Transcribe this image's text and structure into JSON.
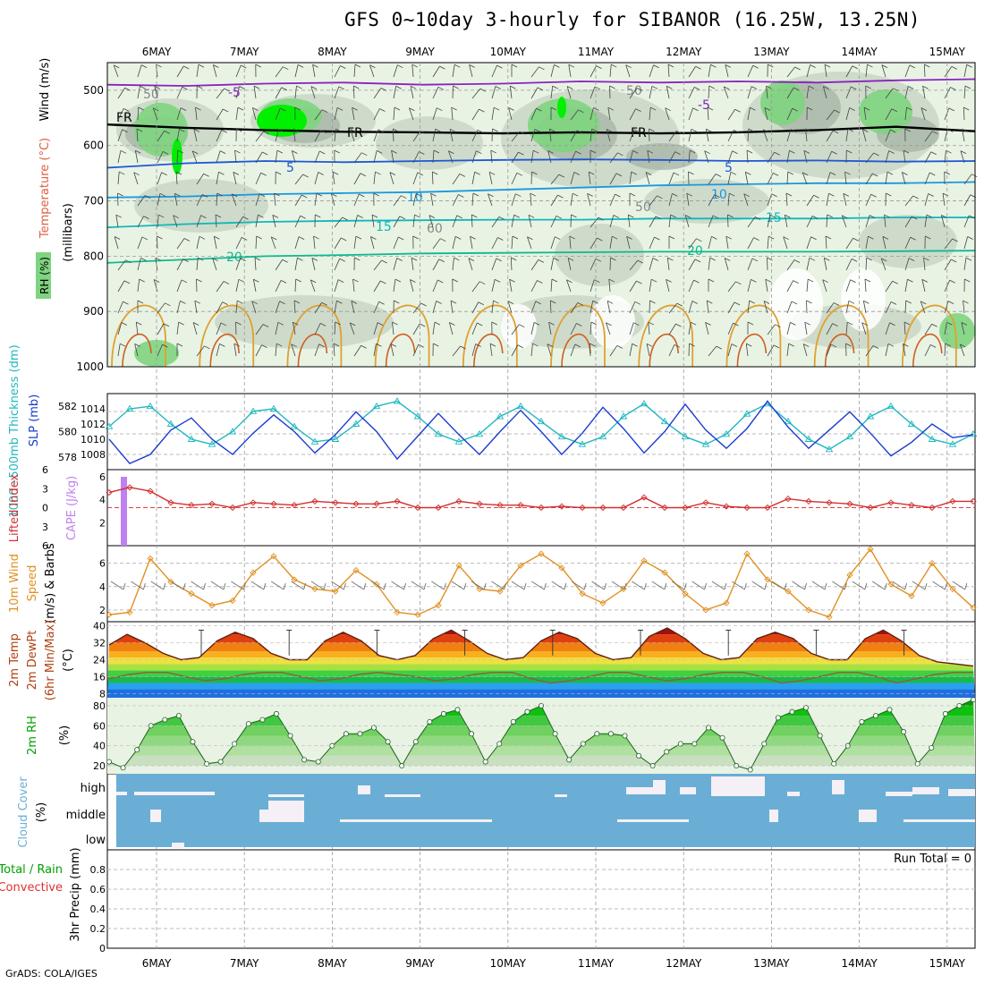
{
  "title": "GFS 0~10day 3-hourly for SIBANOR (16.25W, 13.25N)",
  "credit": "GrADS: COLA/IGES",
  "date_ticks": [
    "6MAY",
    "7MAY",
    "8MAY",
    "9MAY",
    "10MAY",
    "11MAY",
    "12MAY",
    "13MAY",
    "14MAY",
    "15MAY"
  ],
  "colors": {
    "rh_light": "#e8f3e4",
    "rh_mid": "#c9d6c7",
    "rh_dark": "#a9b6a7",
    "rh_green": "#7fd47f",
    "rh_bright": "#00f000",
    "temp_purple": "#8a22c0",
    "temp_blue": "#1e57d6",
    "temp_lightblue": "#1a98e0",
    "temp_cyan": "#10b8b8",
    "temp_teal": "#10b890",
    "temp_orange": "#e0a030",
    "temp_darkorange": "#d06020",
    "thickness": "#20b8c0",
    "slp": "#1a3cd0",
    "lifted": "#d03030",
    "cape": "#c080f0",
    "wind_speed": "#e09020",
    "barbs": "#707070",
    "cloud_blue": "#6aaed6",
    "cloud_white": "#f4f0f6",
    "rh2m": "#00c000"
  },
  "panels": {
    "upper": {
      "ylabel_rh": "RH (%)",
      "ylabel_temp": "Temperature (°C)",
      "ylabel_wind": "Wind (m/s)",
      "ylabel_pressure": "(millibars)",
      "contour_labels": [
        "-5",
        "-5",
        "FR",
        "FR",
        "FR",
        "5",
        "5",
        "10",
        "10",
        "15",
        "15",
        "20",
        "20",
        "50",
        "50",
        "50",
        "60"
      ]
    },
    "thickness_slp": {
      "ylabel_thick": "1000~500mb Thickness (dm)",
      "ylabel_slp": "SLP (mb)"
    },
    "lifted_cape": {
      "ylabel_li": "Lifted Index",
      "ylabel_cape": "CAPE (J/kg)"
    },
    "wind10m": {
      "ylabel1": "10m Wind",
      "ylabel2": "Speed",
      "ylabel3": "(m/s) & Barbs"
    },
    "temp2m": {
      "ylabel1": "2m Temp",
      "ylabel2": "2m DewPt",
      "ylabel3": "(6hr Min/Max)",
      "ylabel4": "(°C)"
    },
    "rh2m": {
      "ylabel": "2m RH",
      "unit": "(%)"
    },
    "cloud": {
      "ylabel": "Cloud Cover",
      "unit": "(%)",
      "levels": [
        "high",
        "middle",
        "low"
      ]
    },
    "precip": {
      "ylabel1": "Total / Rain",
      "ylabel2": "Convective",
      "ylabel3": "3hr Precip (mm)",
      "run_total": "Run Total = 0"
    }
  },
  "chart_data": [
    {
      "type": "contour",
      "panel": "upper-air time-height cross section",
      "y_axis": "pressure (millibars)",
      "ylim": [
        1000,
        450
      ],
      "yticks": [
        "500",
        "600",
        "700",
        "800",
        "900",
        "1000"
      ],
      "isotherms": [
        {
          "label": "-5",
          "level_mb": [
            490,
            492,
            488,
            486,
            490,
            488,
            484,
            486,
            484,
            486,
            482,
            480
          ]
        },
        {
          "label": "FR",
          "level_mb": [
            562,
            568,
            572,
            575,
            576,
            578,
            576,
            578,
            576,
            572,
            566,
            574
          ]
        },
        {
          "label": "5",
          "level_mb": [
            640,
            632,
            628,
            630,
            628,
            626,
            625,
            626,
            628,
            627,
            629,
            628
          ]
        },
        {
          "label": "10",
          "level_mb": [
            694,
            692,
            688,
            686,
            684,
            680,
            676,
            672,
            670,
            668,
            668,
            666
          ]
        },
        {
          "label": "15",
          "level_mb": [
            748,
            742,
            738,
            736,
            735,
            734,
            734,
            732,
            732,
            732,
            730,
            730
          ]
        },
        {
          "label": "20",
          "level_mb": [
            812,
            806,
            800,
            798,
            795,
            794,
            793,
            792,
            792,
            792,
            791,
            790
          ]
        }
      ]
    },
    {
      "type": "line",
      "panel": "thickness_slp",
      "series": [
        {
          "name": "1000~500mb Thickness (dm)",
          "axis": "left",
          "ylim": [
            577,
            583
          ],
          "yticks": [
            "578",
            "580",
            "582"
          ],
          "values": [
            580.4,
            581.8,
            582.0,
            580.6,
            579.4,
            579.0,
            580.0,
            581.6,
            581.8,
            580.4,
            579.2,
            579.4,
            580.6,
            582.0,
            582.4,
            581.2,
            579.8,
            579.2,
            579.8,
            581.2,
            582.0,
            580.8,
            579.6,
            579.0,
            579.6,
            581.2,
            582.2,
            580.8,
            579.6,
            579.0,
            579.8,
            581.4,
            582.2,
            580.8,
            579.4,
            578.6,
            579.6,
            581.2,
            582.0,
            580.6,
            579.4,
            579.0,
            579.8
          ]
        },
        {
          "name": "SLP (mb)",
          "axis": "right",
          "ylim": [
            1006,
            1016
          ],
          "yticks": [
            "1008",
            "1010",
            "1012",
            "1014"
          ],
          "values": [
            1010.0,
            1006.8,
            1008.0,
            1011.2,
            1012.8,
            1010.0,
            1008.0,
            1010.8,
            1013.2,
            1011.0,
            1008.2,
            1010.6,
            1013.6,
            1011.0,
            1007.4,
            1010.4,
            1013.4,
            1010.6,
            1008.0,
            1011.0,
            1013.8,
            1011.0,
            1008.0,
            1010.8,
            1014.2,
            1011.4,
            1008.2,
            1011.0,
            1014.6,
            1011.2,
            1008.8,
            1011.4,
            1015.0,
            1011.6,
            1008.8,
            1011.2,
            1013.6,
            1010.8,
            1007.8,
            1009.6,
            1012.0,
            1010.2,
            1010.6
          ]
        }
      ]
    },
    {
      "type": "line",
      "panel": "lifted_cape",
      "lifted_index_ylim": [
        6,
        -6
      ],
      "lifted_index_yticks": [
        "6",
        "3",
        "0",
        "3",
        "6"
      ],
      "cape_yticks": [
        "2",
        "4",
        "6"
      ],
      "series": [
        {
          "name": "Lifted Index",
          "values": [
            3.6,
            2.8,
            3.4,
            5.2,
            5.6,
            5.4,
            6.0,
            5.2,
            5.4,
            5.6,
            5.0,
            5.2,
            5.4,
            5.4,
            5.0,
            6.0,
            6.0,
            5.0,
            5.4,
            5.6,
            5.6,
            6.0,
            5.8,
            6.0,
            6.0,
            6.0,
            4.4,
            6.0,
            6.0,
            5.2,
            5.8,
            6.0,
            6.0,
            4.6,
            5.0,
            5.2,
            5.4,
            6.0,
            5.2,
            5.6,
            6.0,
            5.0,
            5.0
          ]
        },
        {
          "name": "CAPE (J/kg)",
          "bars": [
            {
              "day": 0.2,
              "value": 6.0
            }
          ]
        }
      ]
    },
    {
      "type": "line",
      "panel": "wind10m",
      "ylim": [
        1,
        7.5
      ],
      "yticks": [
        "2",
        "4",
        "6"
      ],
      "series": [
        {
          "name": "Speed",
          "values": [
            1.6,
            1.8,
            6.4,
            4.4,
            3.4,
            2.4,
            2.8,
            5.2,
            6.6,
            4.6,
            3.8,
            3.6,
            5.4,
            4.2,
            1.8,
            1.6,
            2.4,
            5.8,
            3.8,
            3.6,
            5.8,
            6.8,
            5.6,
            3.4,
            2.6,
            3.8,
            6.2,
            5.2,
            3.4,
            2.0,
            2.6,
            6.8,
            4.6,
            3.6,
            2.0,
            1.4,
            5.0,
            7.2,
            4.2,
            3.2,
            6.0,
            3.8,
            2.2
          ]
        }
      ]
    },
    {
      "type": "area",
      "panel": "temp2m",
      "ylim": [
        6,
        42
      ],
      "yticks": [
        "8",
        "16",
        "24",
        "32",
        "40"
      ],
      "series": [
        {
          "name": "2m Temp",
          "values": [
            31,
            36,
            32,
            27,
            24,
            25,
            33,
            37,
            34,
            27,
            24,
            24,
            33,
            37,
            33,
            26,
            24,
            26,
            34,
            38,
            33,
            27,
            24,
            25,
            33,
            37,
            34,
            27,
            24,
            25,
            35,
            39,
            34,
            27,
            24,
            25,
            34,
            37,
            34,
            27,
            24,
            24,
            34,
            38,
            33,
            26,
            23,
            22,
            21
          ]
        },
        {
          "name": "2m DewPt",
          "values": [
            15,
            17,
            18,
            18,
            16,
            14,
            15,
            17,
            18,
            18,
            16,
            14,
            15,
            17,
            18,
            17,
            16,
            14,
            15,
            17,
            18,
            18,
            15,
            13,
            14,
            16,
            18,
            18,
            16,
            14,
            15,
            17,
            18,
            18,
            16,
            13,
            14,
            16,
            18,
            18,
            16,
            13,
            15,
            17,
            18,
            18
          ]
        }
      ]
    },
    {
      "type": "area",
      "panel": "rh2m",
      "ylim": [
        12,
        88
      ],
      "yticks": [
        "20",
        "40",
        "60",
        "80"
      ],
      "series": [
        {
          "name": "2m RH",
          "values": [
            24,
            18,
            36,
            60,
            66,
            70,
            44,
            22,
            24,
            42,
            62,
            66,
            72,
            50,
            26,
            24,
            40,
            52,
            52,
            58,
            44,
            20,
            44,
            64,
            72,
            76,
            52,
            24,
            42,
            64,
            74,
            80,
            52,
            26,
            42,
            52,
            52,
            50,
            30,
            20,
            34,
            42,
            42,
            58,
            48,
            20,
            16,
            42,
            68,
            74,
            78,
            50,
            22,
            40,
            64,
            70,
            76,
            54,
            22,
            38,
            72,
            80,
            86
          ]
        }
      ]
    },
    {
      "type": "heatmap",
      "panel": "cloud",
      "rows": [
        "high",
        "middle",
        "low"
      ],
      "notes": "mostly clear (blue) with low fractional high cloud, high cloud peaking around 12-13MAY"
    },
    {
      "type": "bar",
      "panel": "precip",
      "ylim": [
        0,
        1
      ],
      "yticks": [
        "0",
        "0.2",
        "0.4",
        "0.6",
        "0.8"
      ],
      "values": []
    }
  ]
}
